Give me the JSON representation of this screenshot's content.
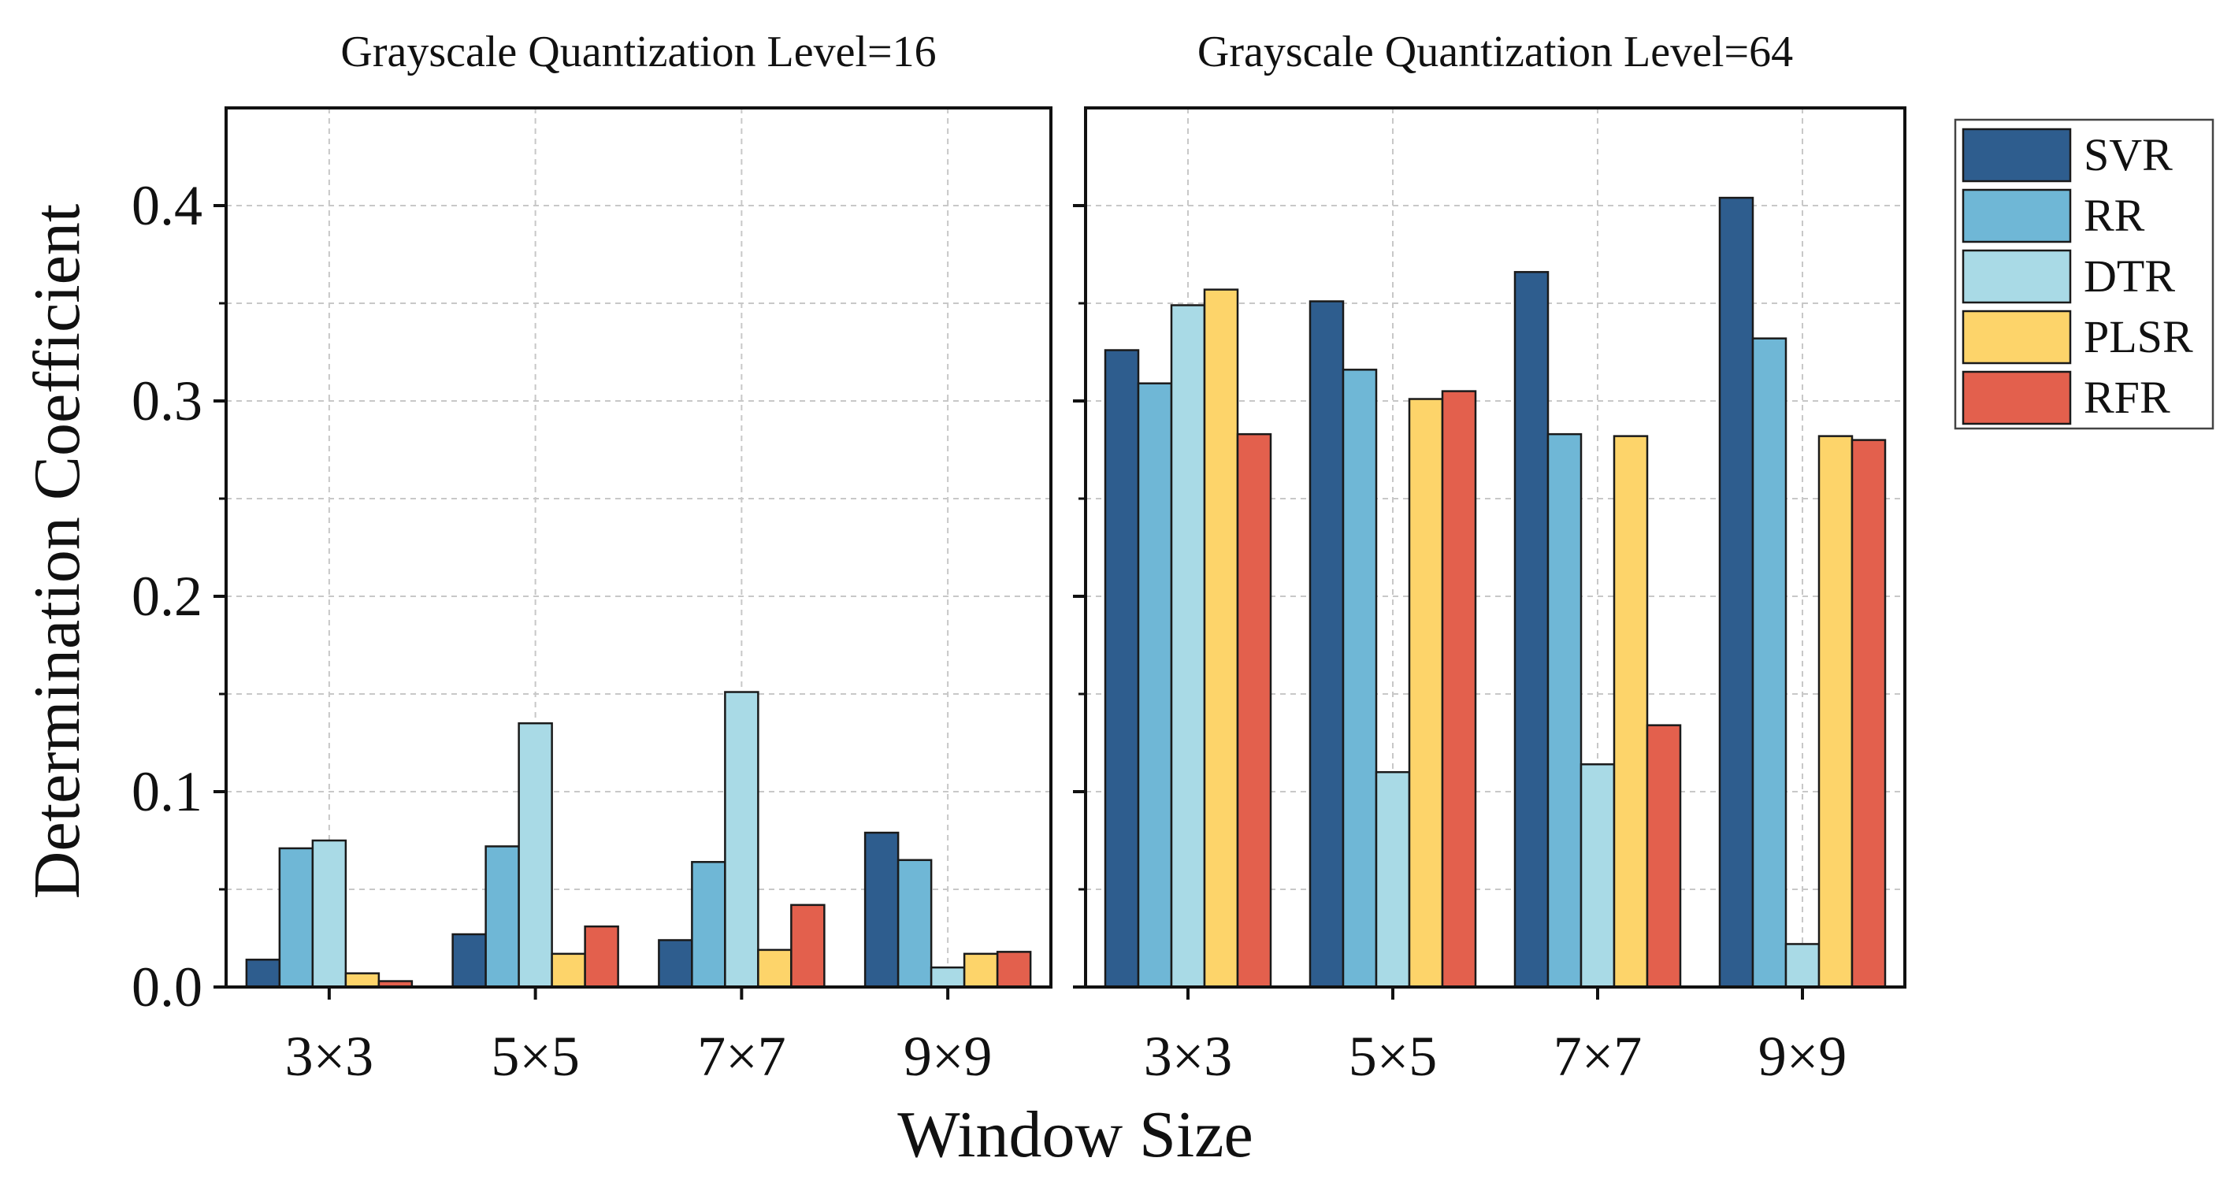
{
  "chart_data": [
    {
      "type": "bar",
      "title": "Grayscale Quantization Level=16",
      "xlabel": "Window Size",
      "ylabel": "Determination Coefficient",
      "ylim": [
        0,
        0.45
      ],
      "yticks": [
        "0.0",
        "0.1",
        "0.2",
        "0.3",
        "0.4"
      ],
      "ytick_values": [
        0,
        0.1,
        0.2,
        0.3,
        0.4
      ],
      "grid": true,
      "categories": [
        "3×3",
        "5×5",
        "7×7",
        "9×9"
      ],
      "series": [
        {
          "name": "SVR",
          "values": [
            0.014,
            0.027,
            0.024,
            0.079
          ]
        },
        {
          "name": "RR",
          "values": [
            0.071,
            0.072,
            0.064,
            0.065
          ]
        },
        {
          "name": "DTR",
          "values": [
            0.075,
            0.135,
            0.151,
            0.01
          ]
        },
        {
          "name": "PLSR",
          "values": [
            0.007,
            0.017,
            0.019,
            0.017
          ]
        },
        {
          "name": "RFR",
          "values": [
            0.003,
            0.031,
            0.042,
            0.018
          ]
        }
      ]
    },
    {
      "type": "bar",
      "title": "Grayscale Quantization Level=64",
      "xlabel": "Window Size",
      "ylabel": "Determination Coefficient",
      "ylim": [
        0,
        0.45
      ],
      "grid": true,
      "categories": [
        "3×3",
        "5×5",
        "7×7",
        "9×9"
      ],
      "series": [
        {
          "name": "SVR",
          "values": [
            0.326,
            0.351,
            0.366,
            0.404
          ]
        },
        {
          "name": "RR",
          "values": [
            0.309,
            0.316,
            0.283,
            0.332
          ]
        },
        {
          "name": "DTR",
          "values": [
            0.349,
            0.11,
            0.114,
            0.022
          ]
        },
        {
          "name": "PLSR",
          "values": [
            0.357,
            0.301,
            0.282,
            0.282
          ]
        },
        {
          "name": "RFR",
          "values": [
            0.283,
            0.305,
            0.134,
            0.28
          ]
        }
      ]
    }
  ],
  "shared": {
    "xlabel": "Window Size",
    "ylabel": "Determination Coefficient",
    "legend_position": "right"
  },
  "legend": [
    {
      "name": "SVR",
      "color": "#2E5D8E"
    },
    {
      "name": "RR",
      "color": "#6FB7D6"
    },
    {
      "name": "DTR",
      "color": "#A9DAE6"
    },
    {
      "name": "PLSR",
      "color": "#FDD46A"
    },
    {
      "name": "RFR",
      "color": "#E3604D"
    }
  ]
}
